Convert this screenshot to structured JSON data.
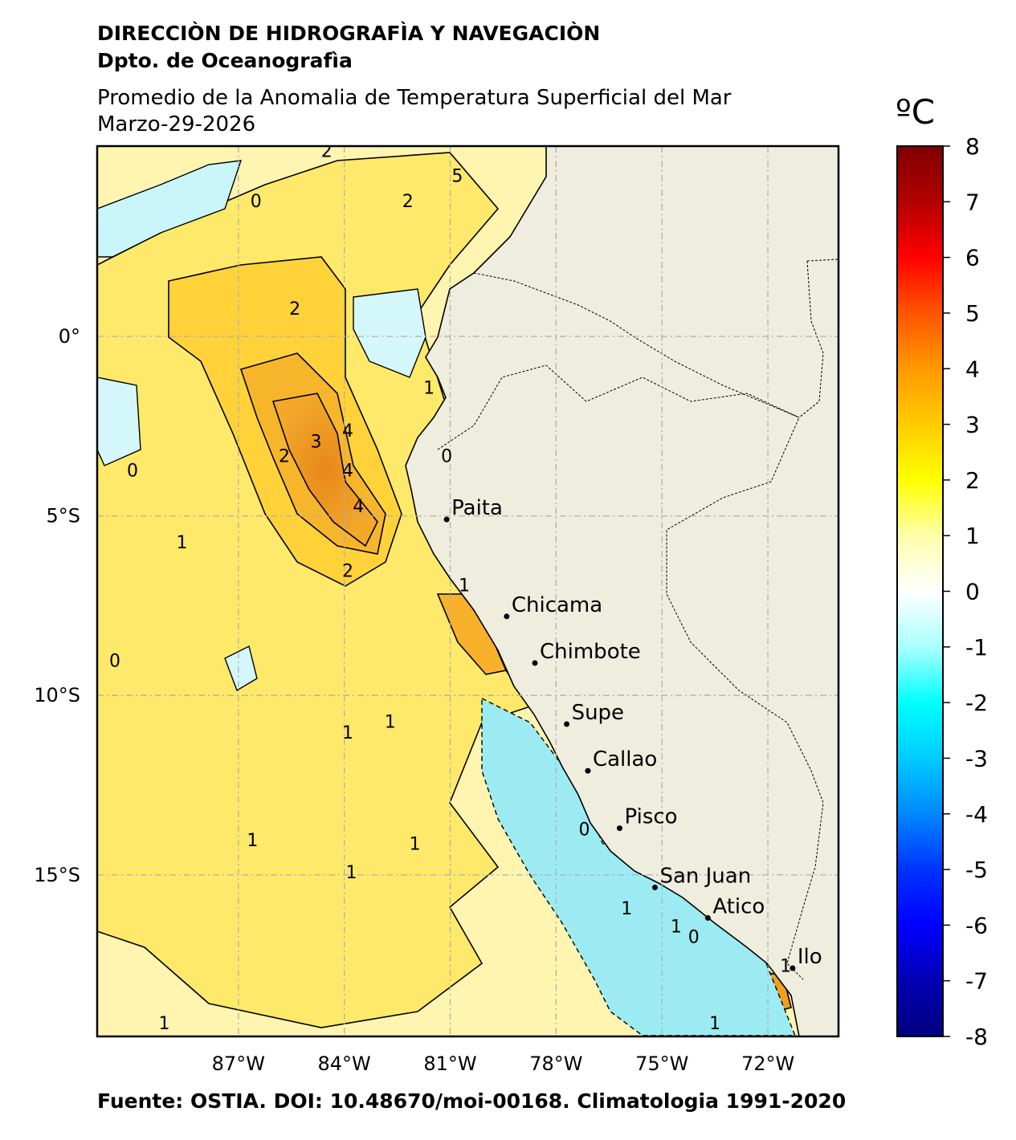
{
  "header": {
    "institution": "DIRECCIÒN DE HIDROGRAFÌA Y NAVEGACIÒN",
    "department": "Dpto. de Oceanografìa",
    "product": "Promedio de la Anomalia de Temperatura Superficial del Mar",
    "date": "Marzo-29-2026"
  },
  "footer": {
    "source": "Fuente: OSTIA. DOI: 10.48670/moi-00168. Climatologia 1991-2020"
  },
  "map": {
    "lon_range": [
      -91,
      -70
    ],
    "lat_range": [
      -19.5,
      5.3
    ],
    "lon_ticks": [
      {
        "value": -87,
        "label": "87°W"
      },
      {
        "value": -84,
        "label": "84°W"
      },
      {
        "value": -81,
        "label": "81°W"
      },
      {
        "value": -78,
        "label": "78°W"
      },
      {
        "value": -75,
        "label": "75°W"
      },
      {
        "value": -72,
        "label": "72°W"
      }
    ],
    "lat_ticks": [
      {
        "value": 0,
        "label": "0°"
      },
      {
        "value": -5,
        "label": "5°S"
      },
      {
        "value": -10,
        "label": "10°S"
      },
      {
        "value": -15,
        "label": "15°S"
      }
    ],
    "cities": [
      {
        "name": "Paita",
        "lon": -81.1,
        "lat": -5.1
      },
      {
        "name": "Chicama",
        "lon": -79.4,
        "lat": -7.8
      },
      {
        "name": "Chimbote",
        "lon": -78.6,
        "lat": -9.1
      },
      {
        "name": "Supe",
        "lon": -77.7,
        "lat": -10.8
      },
      {
        "name": "Callao",
        "lon": -77.1,
        "lat": -12.1
      },
      {
        "name": "Pisco",
        "lon": -76.2,
        "lat": -13.7
      },
      {
        "name": "San Juan",
        "lon": -75.2,
        "lat": -15.35
      },
      {
        "name": "Atico",
        "lon": -73.7,
        "lat": -16.2
      },
      {
        "name": "Ilo",
        "lon": -71.3,
        "lat": -17.6
      }
    ],
    "contour_labels": [
      {
        "text": "0",
        "lon": -90.0,
        "lat": -3.9
      },
      {
        "text": "0",
        "lon": -90.5,
        "lat": -9.2
      },
      {
        "text": "0",
        "lon": -81.1,
        "lat": -3.5
      },
      {
        "text": "0",
        "lon": -77.2,
        "lat": -13.9
      },
      {
        "text": "0",
        "lon": -74.1,
        "lat": -16.9
      },
      {
        "text": "0",
        "lon": -86.5,
        "lat": 3.6
      },
      {
        "text": "1",
        "lon": -88.6,
        "lat": -5.9
      },
      {
        "text": "1",
        "lon": -81.6,
        "lat": -1.6
      },
      {
        "text": "1",
        "lon": -80.6,
        "lat": -7.1
      },
      {
        "text": "1",
        "lon": -82.7,
        "lat": -10.9
      },
      {
        "text": "1",
        "lon": -83.9,
        "lat": -11.2
      },
      {
        "text": "1",
        "lon": -86.6,
        "lat": -14.2
      },
      {
        "text": "1",
        "lon": -82.0,
        "lat": -14.3
      },
      {
        "text": "1",
        "lon": -83.8,
        "lat": -15.1
      },
      {
        "text": "1",
        "lon": -76.0,
        "lat": -16.1
      },
      {
        "text": "1",
        "lon": -74.6,
        "lat": -16.6
      },
      {
        "text": "1",
        "lon": -71.5,
        "lat": -17.7
      },
      {
        "text": "1",
        "lon": -73.5,
        "lat": -19.3
      },
      {
        "text": "1",
        "lon": -89.1,
        "lat": -19.3
      },
      {
        "text": "2",
        "lon": -84.5,
        "lat": 5.0
      },
      {
        "text": "2",
        "lon": -82.2,
        "lat": 3.6
      },
      {
        "text": "2",
        "lon": -85.4,
        "lat": 0.6
      },
      {
        "text": "2",
        "lon": -85.7,
        "lat": -3.5
      },
      {
        "text": "2",
        "lon": -83.9,
        "lat": -6.7
      },
      {
        "text": "3",
        "lon": -84.8,
        "lat": -3.1
      },
      {
        "text": "4",
        "lon": -83.9,
        "lat": -2.8
      },
      {
        "text": "4",
        "lon": -83.9,
        "lat": -3.9
      },
      {
        "text": "4",
        "lon": -83.6,
        "lat": -4.9
      },
      {
        "text": "5",
        "lon": -80.8,
        "lat": 4.3
      }
    ]
  },
  "colorbar": {
    "unit": "ºC",
    "min": -8,
    "max": 8,
    "ticks": [
      8,
      7,
      6,
      5,
      4,
      3,
      2,
      1,
      0,
      -1,
      -2,
      -3,
      -4,
      -5,
      -6,
      -7,
      -8
    ],
    "colors": [
      "#7f0000",
      "#b30000",
      "#ff0000",
      "#ff5500",
      "#ff9900",
      "#ffcc00",
      "#ffff00",
      "#ffffaa",
      "#ffffff",
      "#aaffff",
      "#00ffff",
      "#00ccff",
      "#0088ff",
      "#0033ff",
      "#0000ff",
      "#0000b3",
      "#00007f"
    ]
  },
  "colors": {
    "land": "#efedde",
    "warm": "#ffe84a",
    "hot": "#f4a81a",
    "cold": "#b8f4fa",
    "grid": "#b0b0b0"
  }
}
